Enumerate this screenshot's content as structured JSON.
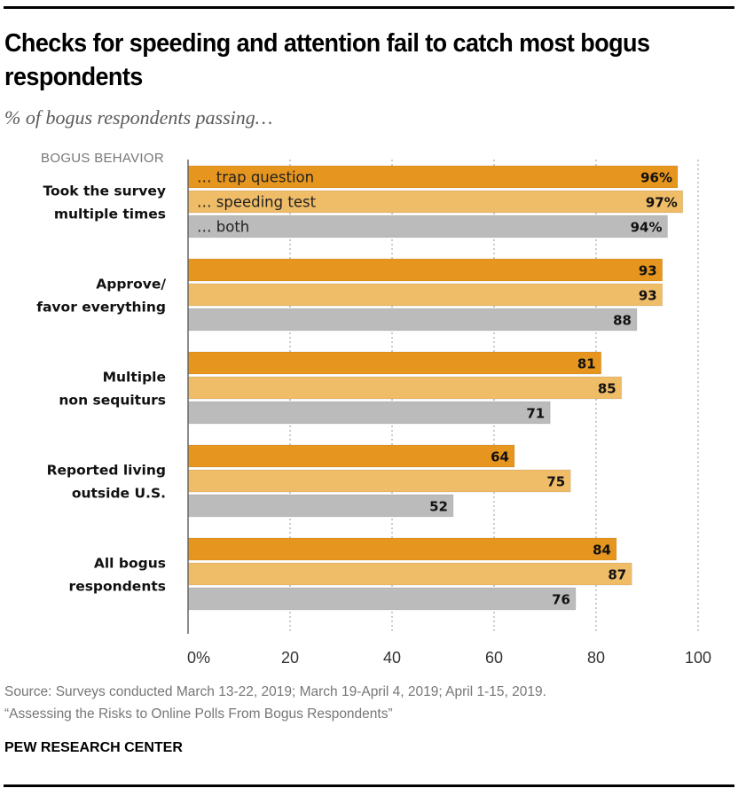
{
  "header": {
    "title": "Checks for speeding and attention fail to catch most bogus respondents",
    "subtitle": "% of bogus respondents passing…",
    "column_label": "BOGUS BEHAVIOR"
  },
  "footer": {
    "source_line1": "Source: Surveys conducted March 13-22, 2019; March 19-April 4, 2019; April 1-15, 2019.",
    "source_line2": "“Assessing the Risks to Online Polls From Bogus Respondents”",
    "brand": "PEW RESEARCH CENTER"
  },
  "chart_data": {
    "type": "bar",
    "orientation": "horizontal",
    "title": "Checks for speeding and attention fail to catch most bogus respondents",
    "subtitle": "% of bogus respondents passing…",
    "xlabel": "",
    "ylabel": "BOGUS BEHAVIOR",
    "xlim": [
      0,
      100
    ],
    "x_ticks": [
      0,
      20,
      40,
      60,
      80,
      100
    ],
    "x_tick_labels": [
      "0%",
      "20",
      "40",
      "60",
      "80",
      "100"
    ],
    "grid": "vertical dotted",
    "categories": [
      [
        "Took the survey",
        "multiple times"
      ],
      [
        "Approve/",
        "favor everything"
      ],
      [
        "Multiple",
        "non sequiturs"
      ],
      [
        "Reported living",
        "outside U.S."
      ],
      [
        "All bogus",
        "respondents"
      ]
    ],
    "series": [
      {
        "name": "… trap question",
        "color": "#E6961E",
        "values": [
          96,
          93,
          81,
          64,
          84
        ]
      },
      {
        "name": "… speeding test",
        "color": "#EFBC68",
        "values": [
          97,
          93,
          85,
          75,
          87
        ]
      },
      {
        "name": "… both",
        "color": "#BBBBBB",
        "values": [
          94,
          88,
          71,
          52,
          76
        ]
      }
    ],
    "legend": "inline-first-group",
    "value_label_suffix_first_group": "%"
  }
}
